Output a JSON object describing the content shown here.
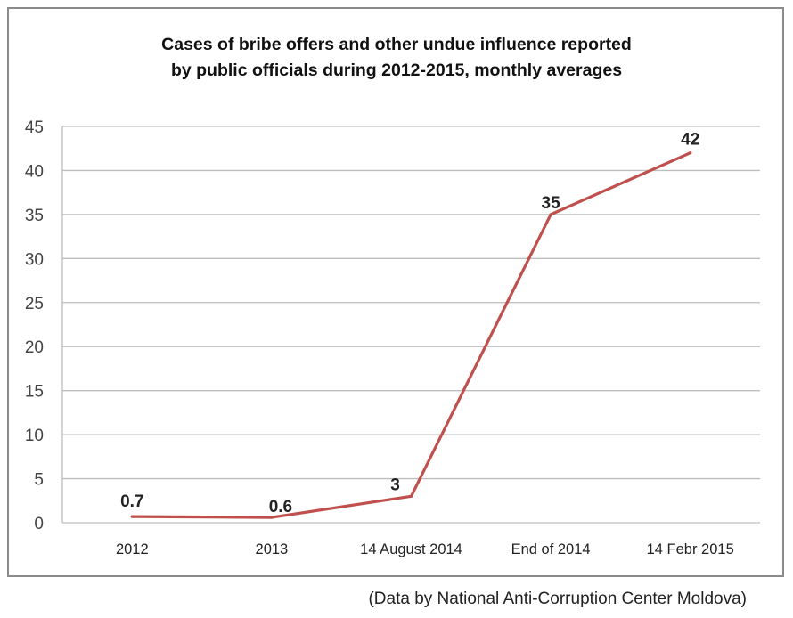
{
  "chart_data": {
    "type": "line",
    "title": "Cases of bribe offers and other undue influence reported\nby public officials during 2012-2015, monthly averages",
    "categories": [
      "2012",
      "2013",
      "14 August 2014",
      "End of 2014",
      "14 Febr 2015"
    ],
    "series": [
      {
        "values": [
          0.7,
          0.6,
          3,
          35,
          42
        ],
        "data_labels": [
          "0.7",
          "0.6",
          "3",
          "35",
          "42"
        ]
      }
    ],
    "y_ticks": [
      "0",
      "5",
      "10",
      "15",
      "20",
      "25",
      "30",
      "35",
      "40",
      "45"
    ],
    "ylim": [
      0,
      45
    ],
    "grid": true,
    "legend": "none",
    "line_color": "#c0504d",
    "xlabel": "",
    "ylabel": ""
  },
  "source_note": "(Data by National Anti-Corruption Center Moldova)"
}
